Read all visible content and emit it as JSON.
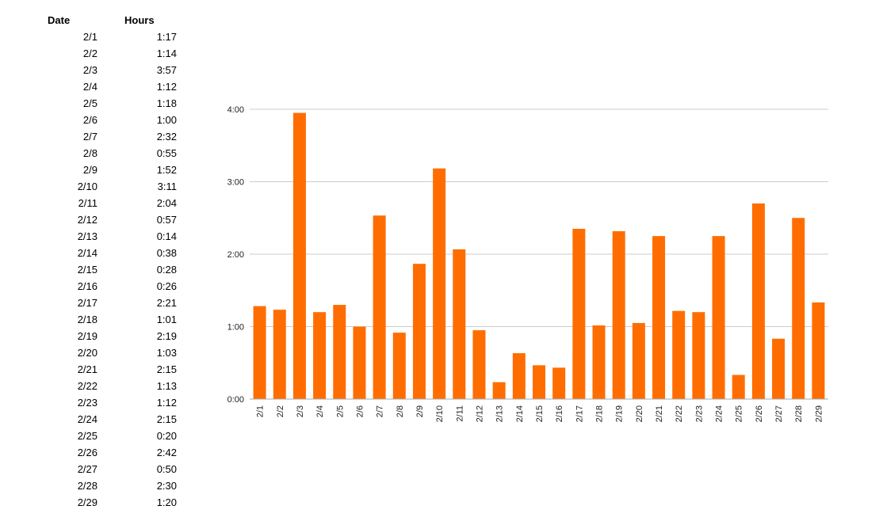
{
  "table": {
    "headers": {
      "date": "Date",
      "hours": "Hours"
    },
    "rows": [
      [
        "2/1",
        "1:17"
      ],
      [
        "2/2",
        "1:14"
      ],
      [
        "2/3",
        "3:57"
      ],
      [
        "2/4",
        "1:12"
      ],
      [
        "2/5",
        "1:18"
      ],
      [
        "2/6",
        "1:00"
      ],
      [
        "2/7",
        "2:32"
      ],
      [
        "2/8",
        "0:55"
      ],
      [
        "2/9",
        "1:52"
      ],
      [
        "2/10",
        "3:11"
      ],
      [
        "2/11",
        "2:04"
      ],
      [
        "2/12",
        "0:57"
      ],
      [
        "2/13",
        "0:14"
      ],
      [
        "2/14",
        "0:38"
      ],
      [
        "2/15",
        "0:28"
      ],
      [
        "2/16",
        "0:26"
      ],
      [
        "2/17",
        "2:21"
      ],
      [
        "2/18",
        "1:01"
      ],
      [
        "2/19",
        "2:19"
      ],
      [
        "2/20",
        "1:03"
      ],
      [
        "2/21",
        "2:15"
      ],
      [
        "2/22",
        "1:13"
      ],
      [
        "2/23",
        "1:12"
      ],
      [
        "2/24",
        "2:15"
      ],
      [
        "2/25",
        "0:20"
      ],
      [
        "2/26",
        "2:42"
      ],
      [
        "2/27",
        "0:50"
      ],
      [
        "2/28",
        "2:30"
      ],
      [
        "2/29",
        "1:20"
      ]
    ]
  },
  "chart_data": {
    "type": "bar",
    "categories": [
      "2/1",
      "2/2",
      "2/3",
      "2/4",
      "2/5",
      "2/6",
      "2/7",
      "2/8",
      "2/9",
      "2/10",
      "2/11",
      "2/12",
      "2/13",
      "2/14",
      "2/15",
      "2/16",
      "2/17",
      "2/18",
      "2/19",
      "2/20",
      "2/21",
      "2/22",
      "2/23",
      "2/24",
      "2/25",
      "2/26",
      "2/27",
      "2/28",
      "2/29"
    ],
    "values": [
      77,
      74,
      237,
      72,
      78,
      60,
      152,
      55,
      112,
      191,
      124,
      57,
      14,
      38,
      28,
      26,
      141,
      61,
      139,
      63,
      135,
      73,
      72,
      135,
      20,
      162,
      50,
      150,
      80
    ],
    "value_unit": "minutes",
    "y_ticks": [
      0,
      60,
      120,
      180,
      240
    ],
    "y_tick_labels": [
      "0:00",
      "1:00",
      "2:00",
      "3:00",
      "4:00"
    ],
    "ylim": [
      0,
      240
    ],
    "bar_color": "#ff6d00",
    "grid_color": "#cccccc",
    "grid": true,
    "title": "",
    "xlabel": "",
    "ylabel": ""
  }
}
